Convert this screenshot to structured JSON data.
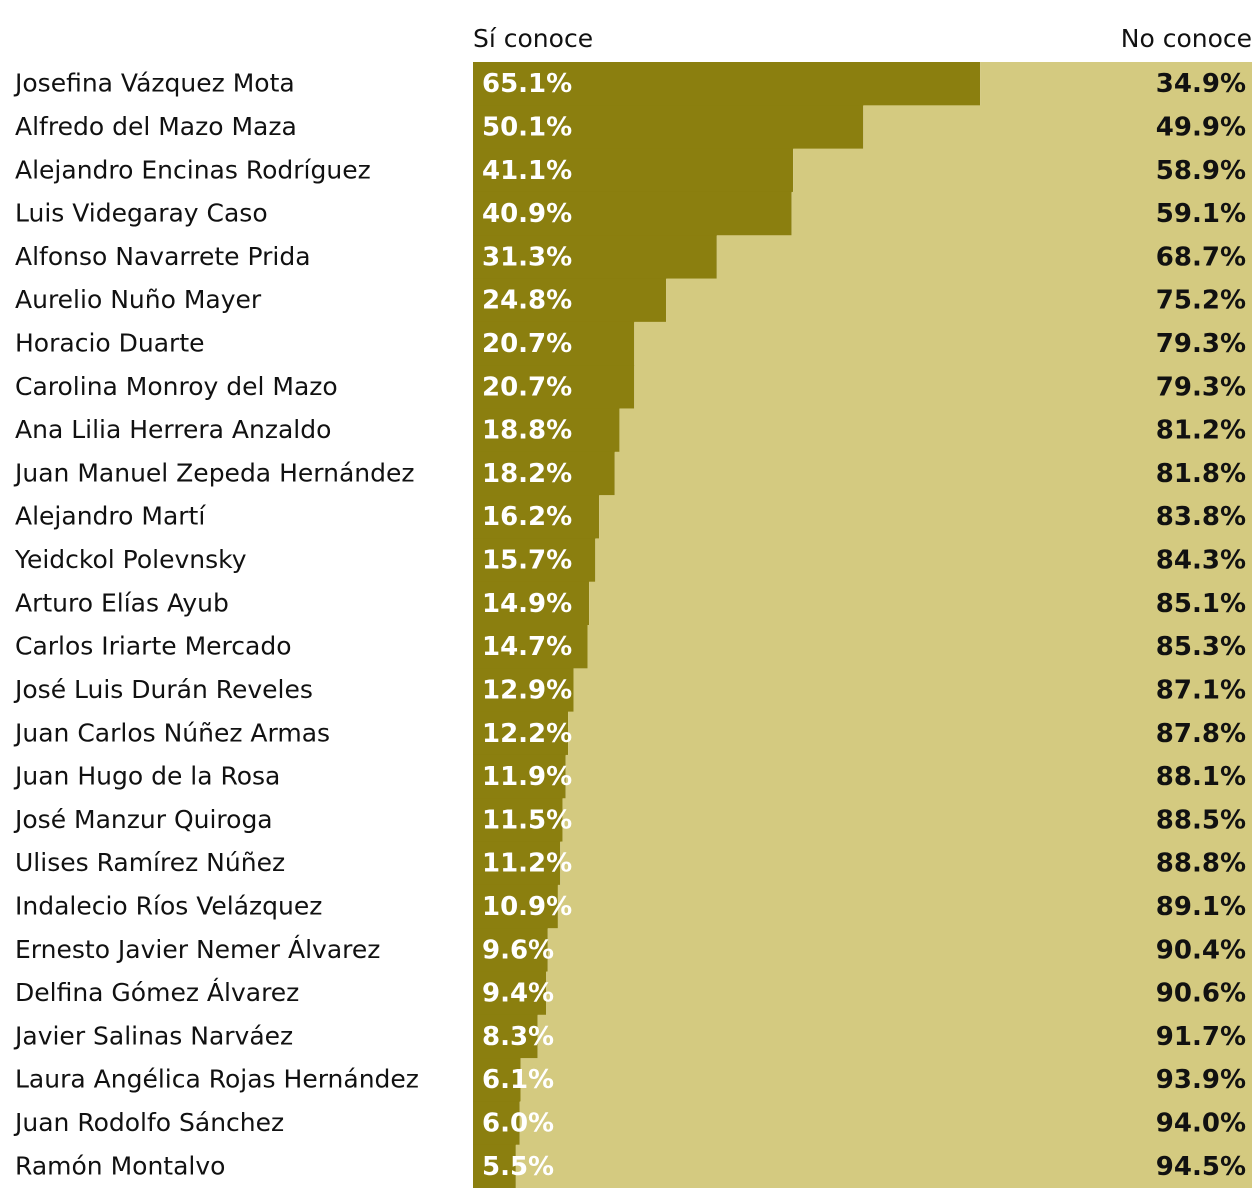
{
  "chart_data": {
    "type": "stacked-bar-horizontal",
    "categories": [
      "Josefina Vázquez Mota",
      "Alfredo del Mazo Maza",
      "Alejandro Encinas Rodríguez",
      "Luis Videgaray Caso",
      "Alfonso Navarrete Prida",
      "Aurelio Nuño Mayer",
      "Horacio Duarte",
      "Carolina Monroy del Mazo",
      "Ana Lilia Herrera Anzaldo",
      "Juan Manuel Zepeda Hernández",
      "Alejandro Martí",
      "Yeidckol Polevnsky",
      "Arturo Elías Ayub",
      "Carlos Iriarte Mercado",
      "José Luis Durán Reveles",
      "Juan Carlos Núñez Armas",
      "Juan Hugo de la Rosa",
      "José Manzur Quiroga",
      "Ulises Ramírez Núñez",
      "Indalecio Ríos Velázquez",
      "Ernesto Javier Nemer Álvarez",
      "Delfina Gómez Álvarez",
      "Javier Salinas Narváez",
      "Laura Angélica Rojas Hernández",
      "Juan Rodolfo Sánchez",
      "Ramón Montalvo"
    ],
    "series": [
      {
        "name": "Sí conoce",
        "color": "#8b7f0f",
        "values": [
          65.1,
          50.1,
          41.1,
          40.9,
          31.3,
          24.8,
          20.7,
          20.7,
          18.8,
          18.2,
          16.2,
          15.7,
          14.9,
          14.7,
          12.9,
          12.2,
          11.9,
          11.5,
          11.2,
          10.9,
          9.6,
          9.4,
          8.3,
          6.1,
          6.0,
          5.5
        ],
        "value_labels": [
          "65.1%",
          "50.1%",
          "41.1%",
          "40.9%",
          "31.3%",
          "24.8%",
          "20.7%",
          "20.7%",
          "18.8%",
          "18.2%",
          "16.2%",
          "15.7%",
          "14.9%",
          "14.7%",
          "12.9%",
          "12.2%",
          "11.9%",
          "11.5%",
          "11.2%",
          "10.9%",
          "9.6%",
          "9.4%",
          "8.3%",
          "6.1%",
          "6.0%",
          "5.5%"
        ]
      },
      {
        "name": "No conoce",
        "color": "#d4ca80",
        "values": [
          34.9,
          49.9,
          58.9,
          59.1,
          68.7,
          75.2,
          79.3,
          79.3,
          81.2,
          81.8,
          83.8,
          84.3,
          85.1,
          85.3,
          87.1,
          87.8,
          88.1,
          88.5,
          88.8,
          89.1,
          90.4,
          90.6,
          91.7,
          93.9,
          94.0,
          94.5
        ],
        "value_labels": [
          "34.9%",
          "49.9%",
          "58.9%",
          "59.1%",
          "68.7%",
          "75.2%",
          "79.3%",
          "79.3%",
          "81.2%",
          "81.8%",
          "83.8%",
          "84.3%",
          "85.1%",
          "85.3%",
          "87.1%",
          "87.8%",
          "88.1%",
          "88.5%",
          "88.8%",
          "89.1%",
          "90.4%",
          "90.6%",
          "91.7%",
          "93.9%",
          "94.0%",
          "94.5%"
        ]
      }
    ]
  }
}
